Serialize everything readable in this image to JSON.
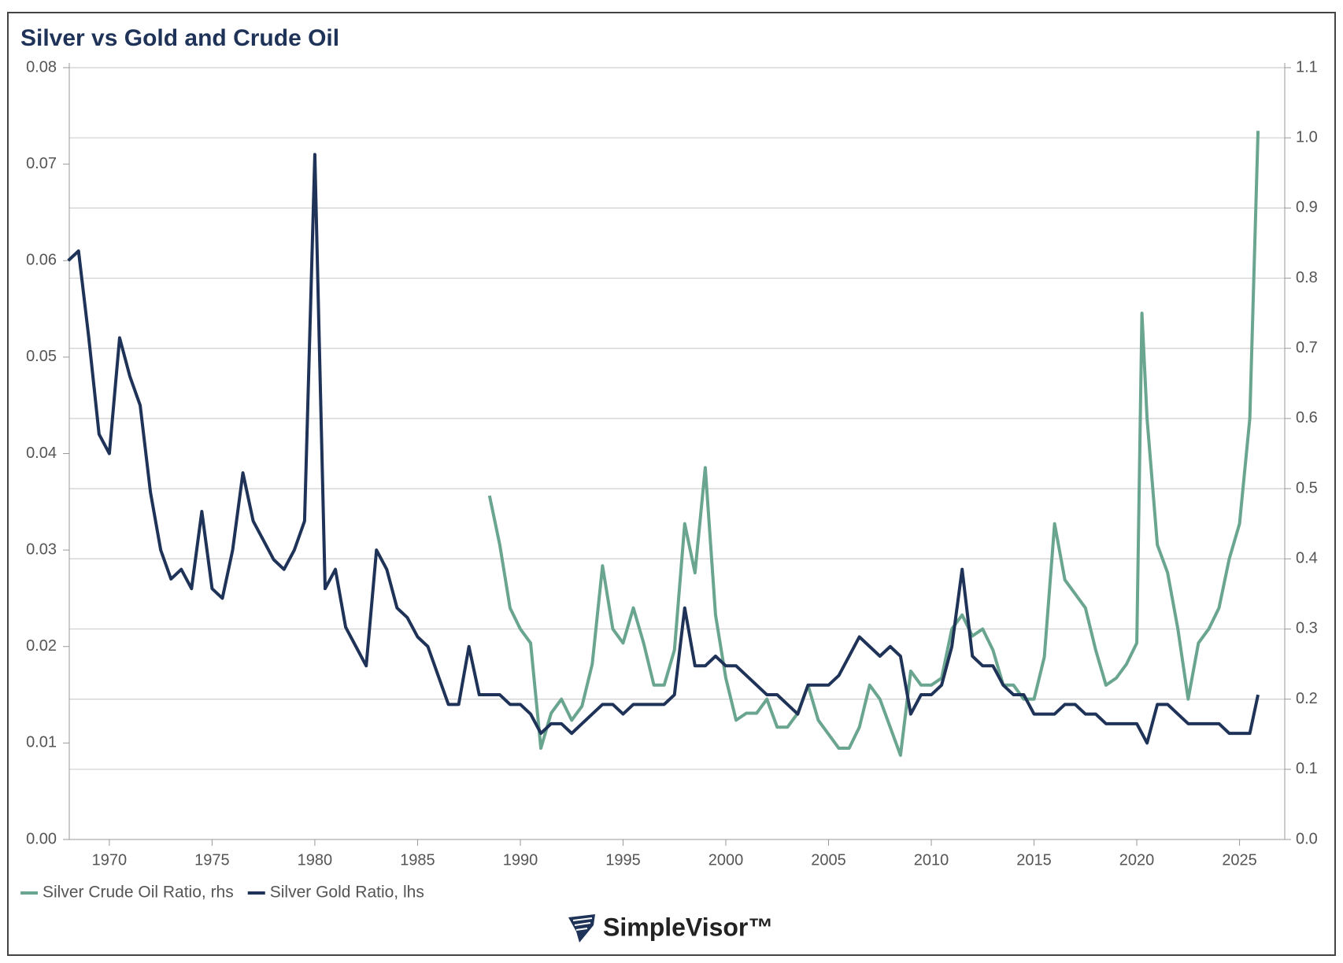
{
  "chart_data": {
    "type": "line",
    "title": "Silver vs Gold and Crude Oil",
    "brand": "SimpleVisor™",
    "x": [
      1968.0,
      1968.5,
      1969.0,
      1969.5,
      1970.0,
      1970.5,
      1971.0,
      1971.5,
      1972.0,
      1972.5,
      1973.0,
      1973.5,
      1974.0,
      1974.5,
      1975.0,
      1975.5,
      1976.0,
      1976.5,
      1977.0,
      1977.5,
      1978.0,
      1978.5,
      1979.0,
      1979.5,
      1980.0,
      1980.5,
      1981.0,
      1981.5,
      1982.0,
      1982.5,
      1983.0,
      1983.5,
      1984.0,
      1984.5,
      1985.0,
      1985.5,
      1986.0,
      1986.5,
      1987.0,
      1987.5,
      1988.0,
      1988.5,
      1989.0,
      1989.5,
      1990.0,
      1990.5,
      1991.0,
      1991.5,
      1992.0,
      1992.5,
      1993.0,
      1993.5,
      1994.0,
      1994.5,
      1995.0,
      1995.5,
      1996.0,
      1996.5,
      1997.0,
      1997.5,
      1998.0,
      1998.5,
      1999.0,
      1999.5,
      2000.0,
      2000.5,
      2001.0,
      2001.5,
      2002.0,
      2002.5,
      2003.0,
      2003.5,
      2004.0,
      2004.5,
      2005.0,
      2005.5,
      2006.0,
      2006.5,
      2007.0,
      2007.5,
      2008.0,
      2008.5,
      2009.0,
      2009.5,
      2010.0,
      2010.5,
      2011.0,
      2011.5,
      2012.0,
      2012.5,
      2013.0,
      2013.5,
      2014.0,
      2014.5,
      2015.0,
      2015.5,
      2016.0,
      2016.5,
      2017.0,
      2017.5,
      2018.0,
      2018.5,
      2019.0,
      2019.5,
      2020.0,
      2020.25,
      2020.5,
      2021.0,
      2021.5,
      2022.0,
      2022.5,
      2023.0,
      2023.5,
      2024.0,
      2024.5,
      2025.0,
      2025.5,
      2025.9
    ],
    "series": [
      {
        "name": "Silver Crude Oil Ratio, rhs",
        "color": "#6aa58f",
        "axis": "y2",
        "values": [
          null,
          null,
          null,
          null,
          null,
          null,
          null,
          null,
          null,
          null,
          null,
          null,
          null,
          null,
          null,
          null,
          null,
          null,
          null,
          null,
          null,
          null,
          null,
          null,
          null,
          null,
          null,
          null,
          null,
          null,
          null,
          null,
          null,
          null,
          null,
          null,
          null,
          null,
          null,
          null,
          null,
          0.49,
          0.42,
          0.33,
          0.3,
          0.28,
          0.13,
          0.18,
          0.2,
          0.17,
          0.19,
          0.25,
          0.39,
          0.3,
          0.28,
          0.33,
          0.28,
          0.22,
          0.22,
          0.27,
          0.45,
          0.38,
          0.53,
          0.32,
          0.23,
          0.17,
          0.18,
          0.18,
          0.2,
          0.16,
          0.16,
          0.18,
          0.22,
          0.17,
          0.15,
          0.13,
          0.13,
          0.16,
          0.22,
          0.2,
          0.16,
          0.12,
          0.24,
          0.22,
          0.22,
          0.23,
          0.3,
          0.32,
          0.29,
          0.3,
          0.27,
          0.22,
          0.22,
          0.2,
          0.2,
          0.26,
          0.45,
          0.37,
          0.35,
          0.33,
          0.27,
          0.22,
          0.23,
          0.25,
          0.28,
          0.75,
          0.6,
          0.42,
          0.38,
          0.3,
          0.2,
          0.28,
          0.3,
          0.33,
          0.4,
          0.45,
          0.6,
          1.01
        ]
      },
      {
        "name": "Silver Gold Ratio, lhs",
        "color": "#1f3358",
        "values": [
          0.06,
          0.061,
          0.052,
          0.042,
          0.04,
          0.052,
          0.048,
          0.045,
          0.036,
          0.03,
          0.027,
          0.028,
          0.026,
          0.034,
          0.026,
          0.025,
          0.03,
          0.038,
          0.033,
          0.031,
          0.029,
          0.028,
          0.03,
          0.033,
          0.071,
          0.026,
          0.028,
          0.022,
          0.02,
          0.018,
          0.03,
          0.028,
          0.024,
          0.023,
          0.021,
          0.02,
          0.017,
          0.014,
          0.014,
          0.02,
          0.015,
          0.015,
          0.015,
          0.014,
          0.014,
          0.013,
          0.011,
          0.012,
          0.012,
          0.011,
          0.012,
          0.013,
          0.014,
          0.014,
          0.013,
          0.014,
          0.014,
          0.014,
          0.014,
          0.015,
          0.024,
          0.018,
          0.018,
          0.019,
          0.018,
          0.018,
          0.017,
          0.016,
          0.015,
          0.015,
          0.014,
          0.013,
          0.016,
          0.016,
          0.016,
          0.017,
          0.019,
          0.021,
          0.02,
          0.019,
          0.02,
          0.019,
          0.013,
          0.015,
          0.015,
          0.016,
          0.02,
          0.028,
          0.019,
          0.018,
          0.018,
          0.016,
          0.015,
          0.015,
          0.013,
          0.013,
          0.013,
          0.014,
          0.014,
          0.013,
          0.013,
          0.012,
          0.012,
          0.012,
          0.012,
          0.011,
          0.01,
          0.014,
          0.014,
          0.013,
          0.012,
          0.012,
          0.012,
          0.012,
          0.011,
          0.011,
          0.011,
          0.015
        ]
      }
    ],
    "xlim": [
      1968.05,
      2027.2
    ],
    "xticks": [
      1970,
      1975,
      1980,
      1985,
      1990,
      1995,
      2000,
      2005,
      2010,
      2015,
      2020,
      2025
    ],
    "ylim": [
      0,
      0.08
    ],
    "yticks": [
      {
        "value": 0,
        "label": "0.00"
      },
      0.01,
      0.02,
      0.03,
      0.04,
      0.05,
      0.06,
      0.07,
      0.08
    ],
    "y2lim": [
      0,
      1.1
    ],
    "y2ticks": [
      {
        "value": 0,
        "label": "0.0"
      },
      0.1,
      0.2,
      0.3,
      0.4,
      0.5,
      0.6,
      0.7,
      0.8,
      0.9,
      {
        "value": 1,
        "label": "1.0"
      },
      1.1
    ],
    "grid": true
  }
}
